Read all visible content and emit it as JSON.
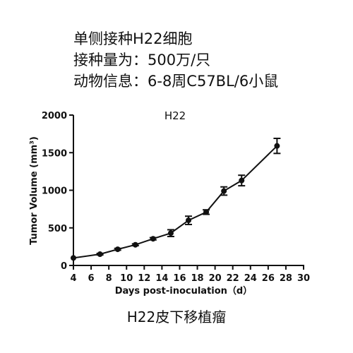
{
  "header": {
    "lines": [
      "单侧接种H22细胞",
      "接种量为：500万/只",
      "动物信息：6-8周C57BL/6小鼠"
    ]
  },
  "caption": "H22皮下移植瘤",
  "chart_data": {
    "type": "line",
    "title": "H22",
    "xlabel": "Days post-inoculation（d）",
    "ylabel": "Tumor Volume (mm³)",
    "xlim": [
      4,
      30
    ],
    "ylim": [
      0,
      2000
    ],
    "xticks": [
      "4",
      "6",
      "8",
      "10",
      "12",
      "14",
      "16",
      "18",
      "20",
      "22",
      "24",
      "26",
      "28",
      "30"
    ],
    "yticks": [
      "0",
      "500",
      "1000",
      "1500",
      "2000"
    ],
    "grid": false,
    "series": [
      {
        "x": [
          4,
          7,
          9,
          11,
          13,
          15,
          17,
          19,
          21,
          23,
          27
        ],
        "y": [
          100,
          150,
          215,
          275,
          355,
          430,
          600,
          710,
          990,
          1130,
          1590
        ],
        "err": [
          0,
          10,
          12,
          12,
          15,
          45,
          55,
          30,
          55,
          70,
          100
        ]
      }
    ],
    "color": "#111111"
  }
}
